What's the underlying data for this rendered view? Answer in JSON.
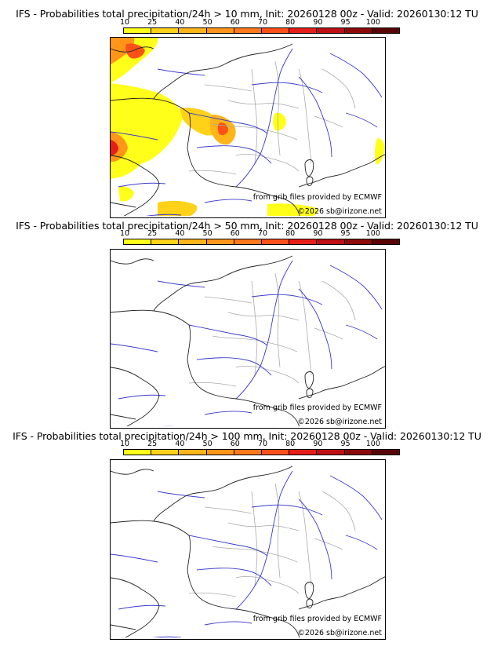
{
  "panels": [
    {
      "title": "IFS - Probabilities total precipitation/24h > 10 mm, Init: 20260128 00z - Valid: 20260130:12 TU",
      "has_precip": true
    },
    {
      "title": "IFS - Probabilities total precipitation/24h > 50 mm, Init: 20260128 00z - Valid: 20260130:12 TU",
      "has_precip": false
    },
    {
      "title": "IFS - Probabilities total precipitation/24h > 100 mm, Init: 20260128 00z - Valid: 20260130:12 TU",
      "has_precip": false
    }
  ],
  "colorbar": {
    "labels": [
      "10",
      "25",
      "40",
      "50",
      "60",
      "70",
      "80",
      "90",
      "95",
      "100"
    ],
    "colors": [
      "#ffff1a",
      "#ffd21a",
      "#ffb41a",
      "#ff961a",
      "#ff781a",
      "#ff501a",
      "#e61e1a",
      "#be0f14",
      "#8c0a0a",
      "#5a0505"
    ]
  },
  "credits": {
    "source": "from grib files provided by ECMWF",
    "copyright": "©2026 sb@irizone.net"
  },
  "colors": {
    "coast": "#222222",
    "rivers": "#3a3acc",
    "borders": "#aaaaaa"
  }
}
